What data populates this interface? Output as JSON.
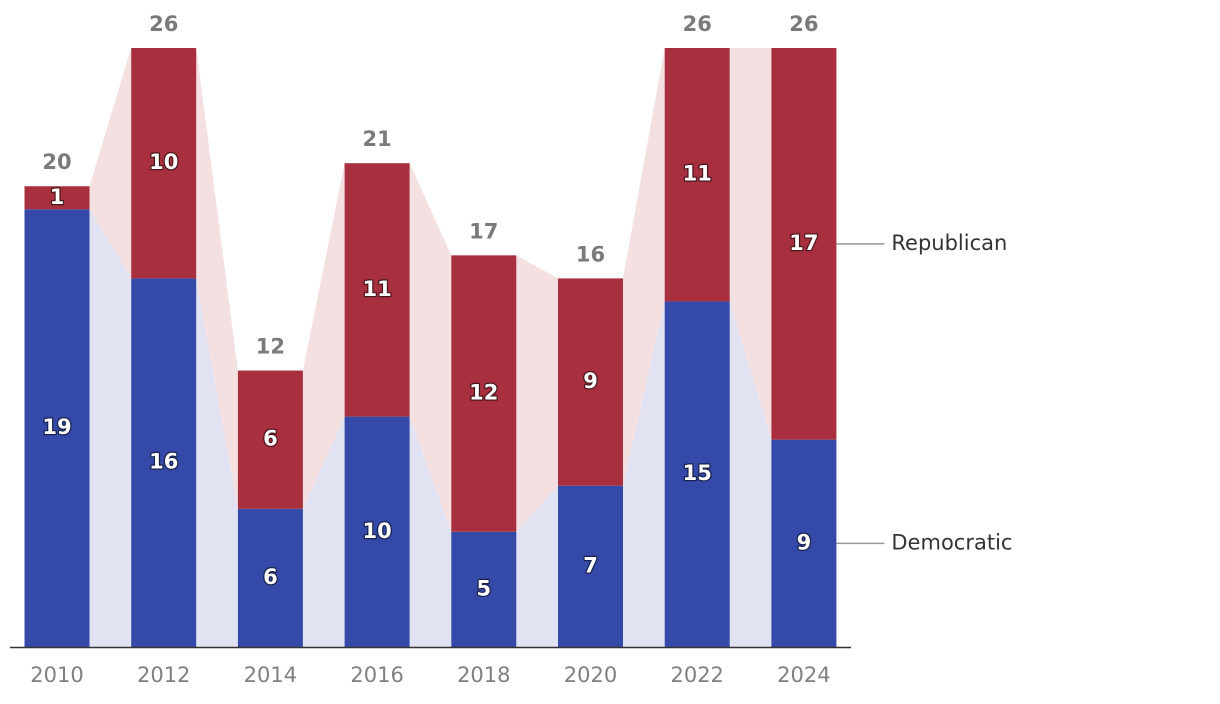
{
  "chart_data": {
    "type": "bar",
    "stacked": true,
    "title": "",
    "xlabel": "",
    "ylabel": "",
    "ylim": [
      0,
      26
    ],
    "grid": false,
    "categories": [
      "2010",
      "2012",
      "2014",
      "2016",
      "2018",
      "2020",
      "2022",
      "2024"
    ],
    "series": [
      {
        "name": "Democratic",
        "color": "#3449a8",
        "band_color": "#e1e3f2",
        "values": [
          19,
          16,
          6,
          10,
          5,
          7,
          15,
          9
        ]
      },
      {
        "name": "Republican",
        "color": "#a72f3e",
        "band_color": "#f4dfe1",
        "values": [
          1,
          10,
          6,
          11,
          12,
          9,
          11,
          17
        ]
      }
    ],
    "totals": [
      20,
      26,
      12,
      21,
      17,
      16,
      26,
      26
    ],
    "legend": [
      "Republican",
      "Democratic"
    ],
    "legend_placement": "right, directly labeling the last bar"
  }
}
